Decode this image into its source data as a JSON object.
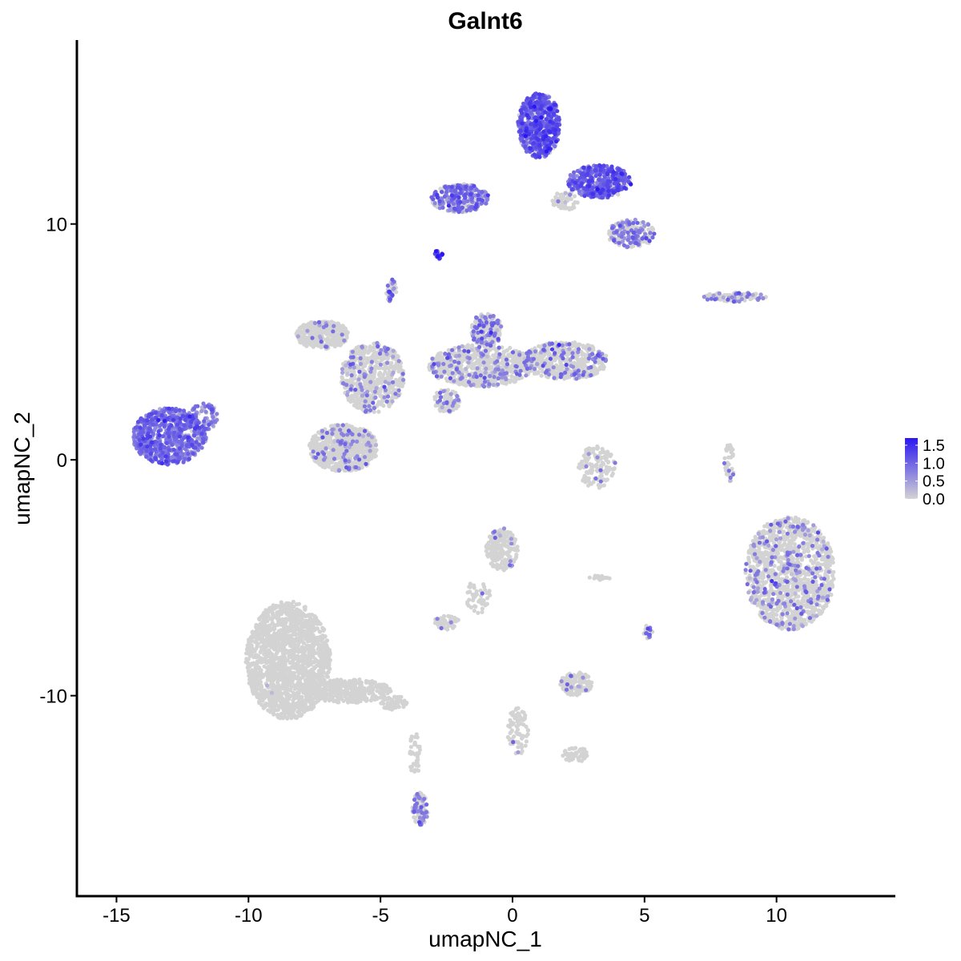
{
  "chart_data": {
    "type": "scatter",
    "title": "Galnt6",
    "xlabel": "umapNC_1",
    "ylabel": "umapNC_2",
    "xlim": [
      -16.5,
      14.5
    ],
    "ylim": [
      -18.5,
      17.8
    ],
    "x_ticks": [
      -15,
      -10,
      -5,
      0,
      5,
      10
    ],
    "x_tick_labels": [
      "-15",
      "-10",
      "-5",
      "0",
      "5",
      "10"
    ],
    "y_ticks": [
      -10,
      0,
      10
    ],
    "y_tick_labels": [
      "-10",
      "0",
      "10"
    ],
    "grid": false,
    "legend_position": "right",
    "color_scale": {
      "low_color": "#d3d3d3",
      "high_color": "#2a17f0",
      "min": 0,
      "max": 1.7,
      "breaks": [
        0.0,
        0.5,
        1.0,
        1.5
      ],
      "break_labels": [
        "0.0",
        "0.5",
        "1.0",
        "1.5"
      ]
    },
    "clusters": [
      {
        "cx": -13.0,
        "cy": 1.0,
        "rx": 1.4,
        "ry": 1.2,
        "n": 700,
        "expr": 0.85,
        "frac": 0.9
      },
      {
        "cx": -11.7,
        "cy": 1.8,
        "rx": 0.6,
        "ry": 0.6,
        "n": 80,
        "expr": 0.7,
        "frac": 0.85
      },
      {
        "cx": -8.5,
        "cy": -8.5,
        "rx": 1.6,
        "ry": 2.5,
        "n": 1600,
        "expr": 0.0,
        "frac": 0.003
      },
      {
        "cx": -6.2,
        "cy": -9.8,
        "rx": 1.6,
        "ry": 0.5,
        "n": 350,
        "expr": 0.0,
        "frac": 0.0
      },
      {
        "cx": -4.5,
        "cy": -10.3,
        "rx": 0.5,
        "ry": 0.3,
        "n": 60,
        "expr": 0.0,
        "frac": 0.0
      },
      {
        "cx": -3.7,
        "cy": -12.5,
        "rx": 0.2,
        "ry": 1.0,
        "n": 40,
        "expr": 0.0,
        "frac": 0.0
      },
      {
        "cx": -3.5,
        "cy": -14.8,
        "rx": 0.3,
        "ry": 0.7,
        "n": 90,
        "expr": 0.7,
        "frac": 0.5
      },
      {
        "cx": -6.4,
        "cy": 0.5,
        "rx": 1.3,
        "ry": 1.0,
        "n": 800,
        "expr": 0.7,
        "frac": 0.1
      },
      {
        "cx": -5.3,
        "cy": 3.5,
        "rx": 1.2,
        "ry": 1.5,
        "n": 600,
        "expr": 0.7,
        "frac": 0.12
      },
      {
        "cx": -7.2,
        "cy": 5.3,
        "rx": 1.0,
        "ry": 0.6,
        "n": 350,
        "expr": 0.7,
        "frac": 0.05
      },
      {
        "cx": -1.2,
        "cy": 4.0,
        "rx": 2.0,
        "ry": 0.9,
        "n": 700,
        "expr": 0.7,
        "frac": 0.15
      },
      {
        "cx": 2.0,
        "cy": 4.2,
        "rx": 1.6,
        "ry": 0.8,
        "n": 500,
        "expr": 0.75,
        "frac": 0.2
      },
      {
        "cx": -1.0,
        "cy": 5.5,
        "rx": 0.6,
        "ry": 0.7,
        "n": 200,
        "expr": 0.8,
        "frac": 0.35
      },
      {
        "cx": -2.5,
        "cy": 2.5,
        "rx": 0.5,
        "ry": 0.5,
        "n": 100,
        "expr": 0.7,
        "frac": 0.2
      },
      {
        "cx": -4.6,
        "cy": 7.2,
        "rx": 0.2,
        "ry": 0.5,
        "n": 40,
        "expr": 0.8,
        "frac": 0.4
      },
      {
        "cx": 3.2,
        "cy": -0.3,
        "rx": 0.7,
        "ry": 0.9,
        "n": 140,
        "expr": 0.7,
        "frac": 0.08
      },
      {
        "cx": 1.0,
        "cy": 14.2,
        "rx": 0.8,
        "ry": 1.4,
        "n": 600,
        "expr": 1.05,
        "frac": 0.85
      },
      {
        "cx": 3.3,
        "cy": 11.8,
        "rx": 1.2,
        "ry": 0.7,
        "n": 450,
        "expr": 1.0,
        "frac": 0.8
      },
      {
        "cx": -2.0,
        "cy": 11.1,
        "rx": 1.1,
        "ry": 0.6,
        "n": 280,
        "expr": 0.85,
        "frac": 0.6
      },
      {
        "cx": 4.5,
        "cy": 9.6,
        "rx": 0.9,
        "ry": 0.6,
        "n": 200,
        "expr": 0.75,
        "frac": 0.45
      },
      {
        "cx": 2.0,
        "cy": 11.0,
        "rx": 0.5,
        "ry": 0.4,
        "n": 60,
        "expr": 0.6,
        "frac": 0.1
      },
      {
        "cx": -2.8,
        "cy": 8.7,
        "rx": 0.15,
        "ry": 0.2,
        "n": 20,
        "expr": 1.3,
        "frac": 0.9
      },
      {
        "cx": 8.4,
        "cy": 6.9,
        "rx": 1.2,
        "ry": 0.2,
        "n": 90,
        "expr": 0.7,
        "frac": 0.35
      },
      {
        "cx": 10.5,
        "cy": -4.8,
        "rx": 1.7,
        "ry": 2.4,
        "n": 1300,
        "expr": 0.7,
        "frac": 0.15
      },
      {
        "cx": 8.2,
        "cy": -0.2,
        "rx": 0.2,
        "ry": 0.9,
        "n": 40,
        "expr": 0.7,
        "frac": 0.1
      },
      {
        "cx": -0.4,
        "cy": -3.8,
        "rx": 0.6,
        "ry": 0.9,
        "n": 220,
        "expr": 0.7,
        "frac": 0.03
      },
      {
        "cx": -1.3,
        "cy": -5.8,
        "rx": 0.5,
        "ry": 0.7,
        "n": 50,
        "expr": 0.7,
        "frac": 0.05
      },
      {
        "cx": -2.5,
        "cy": -6.9,
        "rx": 0.5,
        "ry": 0.3,
        "n": 50,
        "expr": 0.7,
        "frac": 0.05
      },
      {
        "cx": 2.4,
        "cy": -9.5,
        "rx": 0.6,
        "ry": 0.5,
        "n": 140,
        "expr": 0.7,
        "frac": 0.1
      },
      {
        "cx": 0.2,
        "cy": -11.5,
        "rx": 0.4,
        "ry": 1.0,
        "n": 80,
        "expr": 0.7,
        "frac": 0.02
      },
      {
        "cx": 2.4,
        "cy": -12.5,
        "rx": 0.5,
        "ry": 0.3,
        "n": 60,
        "expr": 0.0,
        "frac": 0.0
      },
      {
        "cx": 5.1,
        "cy": -7.3,
        "rx": 0.2,
        "ry": 0.3,
        "n": 15,
        "expr": 0.8,
        "frac": 0.6
      },
      {
        "cx": 3.3,
        "cy": -5.0,
        "rx": 0.4,
        "ry": 0.1,
        "n": 15,
        "expr": 0.0,
        "frac": 0.0
      }
    ]
  }
}
